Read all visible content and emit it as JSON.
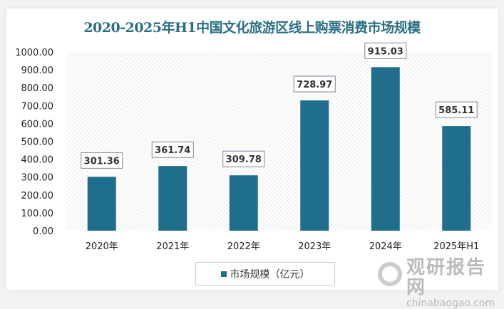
{
  "chart_data": {
    "type": "bar",
    "title": "2020-2025年H1中国文化旅游区线上购票消费市场规模",
    "categories": [
      "2020年",
      "2021年",
      "2022年",
      "2023年",
      "2024年",
      "2025年H1"
    ],
    "series": [
      {
        "name": "市场规模（亿元）",
        "values": [
          301.36,
          361.74,
          309.78,
          728.97,
          915.03,
          585.11
        ]
      }
    ],
    "value_labels": [
      "301.36",
      "361.74",
      "309.78",
      "728.97",
      "915.03",
      "585.11"
    ],
    "yticks": [
      "0.00",
      "100.00",
      "200.00",
      "300.00",
      "400.00",
      "500.00",
      "600.00",
      "700.00",
      "800.00",
      "900.00",
      "1000.00"
    ],
    "ylim": [
      0,
      1000
    ],
    "legend": "bottom",
    "bar_color": "#1f6e8c",
    "title_color": "#2a6f86"
  },
  "watermark": {
    "cn": "观研报告网",
    "en": "chinabaogao.com"
  }
}
